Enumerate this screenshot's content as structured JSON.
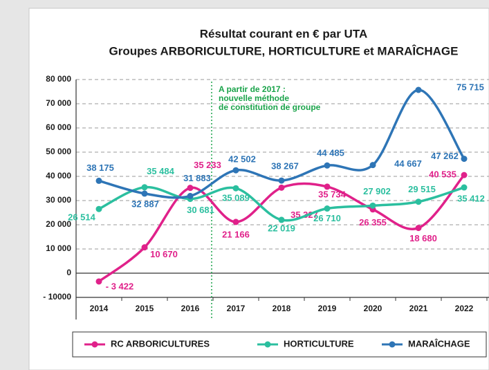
{
  "chart_data": {
    "type": "line",
    "title": "Résultat courant en € par UTA",
    "subtitle": "Groupes ARBORICULTURE, HORTICULTURE et MARAÎCHAGE",
    "annotation": [
      "A partir de 2017 :",
      "nouvelle méthode",
      "de constitution de groupe"
    ],
    "categories": [
      "2014",
      "2015",
      "2016",
      "2017",
      "2018",
      "2019",
      "2020",
      "2021",
      "2022"
    ],
    "series": [
      {
        "name": "RC ARBORICULTURES",
        "color": "#e0218a",
        "values": [
          -3422,
          10670,
          35233,
          21166,
          35327,
          35734,
          26355,
          18680,
          40535
        ],
        "value_labels": [
          "- 3 422",
          "10 670",
          "35 233",
          "21 166",
          "35 327",
          "35 734",
          "26 355",
          "18 680",
          "40 535"
        ]
      },
      {
        "name": "HORTICULTURE",
        "color": "#2bbf9f",
        "values": [
          26514,
          35484,
          30681,
          35089,
          22019,
          26710,
          27902,
          29515,
          35412
        ],
        "value_labels": [
          "26 514",
          "35 484",
          "30 681",
          "35 089",
          "22 019",
          "26 710",
          "27 902",
          "29 515",
          "35 412"
        ]
      },
      {
        "name": "MARAÎCHAGE",
        "color": "#2e75b6",
        "values": [
          38175,
          32887,
          31883,
          42502,
          38267,
          44485,
          44667,
          75715,
          47262
        ],
        "value_labels": [
          "38 175",
          "32 887",
          "31 883",
          "42 502",
          "38 267",
          "44 485",
          "44 667",
          "75 715",
          "47 262"
        ]
      }
    ],
    "ylim": [
      -10000,
      80000
    ],
    "yticks": [
      {
        "value": -10000,
        "label": "- 10000"
      },
      0,
      {
        "value": 10000,
        "label": "10 000"
      },
      {
        "value": 20000,
        "label": "20 000"
      },
      {
        "value": 30000,
        "label": "30 000"
      },
      {
        "value": 40000,
        "label": "40 000"
      },
      {
        "value": 50000,
        "label": "50 000"
      },
      {
        "value": 60000,
        "label": "60 000"
      },
      {
        "value": 70000,
        "label": "70 000"
      },
      {
        "value": 80000,
        "label": "80 000"
      }
    ],
    "grid": true,
    "legend": "bottom"
  }
}
